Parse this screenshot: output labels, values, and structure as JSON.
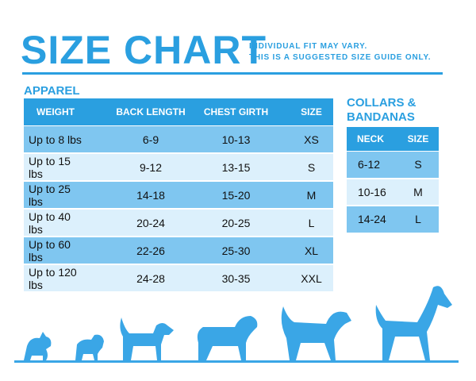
{
  "header": {
    "title": "SIZE CHART",
    "note": [
      "INDIVIDUAL FIT MAY VARY.",
      "THIS IS A SUGGESTED SIZE GUIDE ONLY."
    ]
  },
  "apparel": {
    "title": "APPAREL",
    "headers": [
      "WEIGHT",
      "BACK LENGTH",
      "CHEST GIRTH",
      "SIZE"
    ],
    "rows": [
      [
        "Up to 8 lbs",
        "6-9",
        "10-13",
        "XS"
      ],
      [
        "Up to 15 lbs",
        "9-12",
        "13-15",
        "S"
      ],
      [
        "Up to 25 lbs",
        "14-18",
        "15-20",
        "M"
      ],
      [
        "Up to 40 lbs",
        "20-24",
        "20-25",
        "L"
      ],
      [
        "Up to 60 lbs",
        "22-26",
        "25-30",
        "XL"
      ],
      [
        "Up to 120 lbs",
        "24-28",
        "30-35",
        "XXL"
      ]
    ]
  },
  "collars": {
    "title": [
      "COLLARS &",
      "BANDANAS"
    ],
    "headers": [
      "NECK",
      "SIZE"
    ],
    "rows": [
      [
        "6-12",
        "S"
      ],
      [
        "10-16",
        "M"
      ],
      [
        "14-24",
        "L"
      ]
    ]
  }
}
